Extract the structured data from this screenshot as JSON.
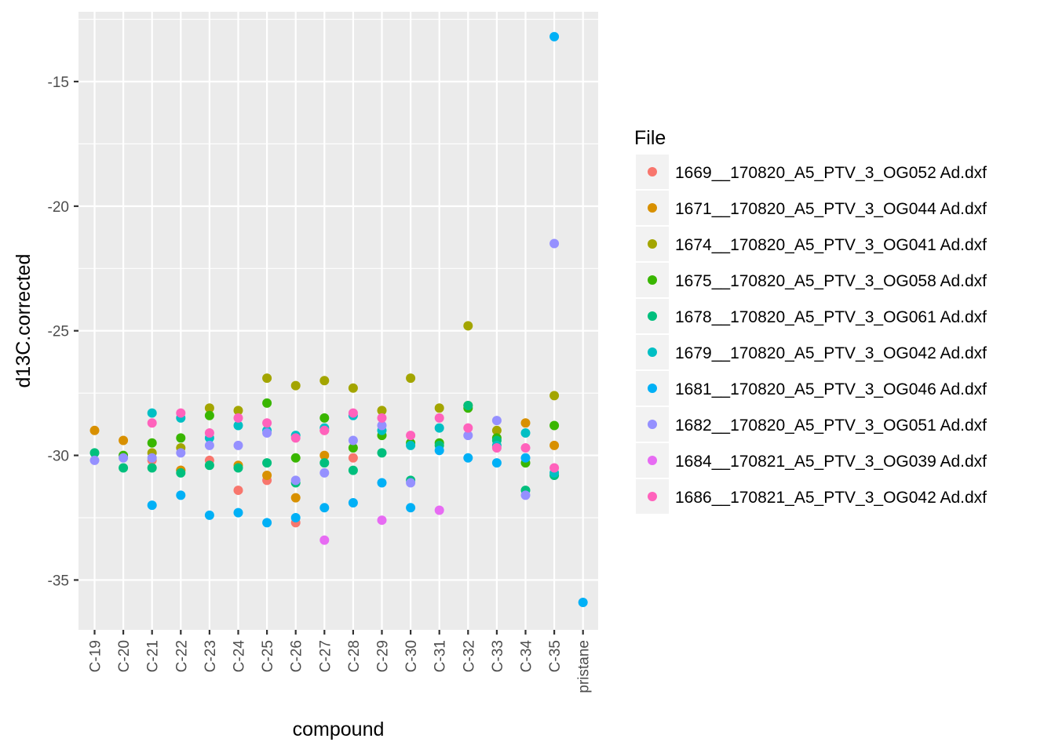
{
  "chart_data": {
    "type": "scatter",
    "xlabel": "compound",
    "ylabel": "d13C.corrected",
    "categories": [
      "C-19",
      "C-20",
      "C-21",
      "C-22",
      "C-23",
      "C-24",
      "C-25",
      "C-26",
      "C-27",
      "C-28",
      "C-29",
      "C-30",
      "C-31",
      "C-32",
      "C-33",
      "C-34",
      "C-35",
      "pristane"
    ],
    "y_ticks": [
      -35,
      -30,
      -25,
      -20,
      -15
    ],
    "ylim": [
      -37.0,
      -12.2
    ],
    "grid": true,
    "legend": {
      "title": "File",
      "placement": "right"
    },
    "series": [
      {
        "name": "1669__170820_A5_PTV_3_OG052 Ad.dxf",
        "color": "#F8766D",
        "points": [
          [
            "C-21",
            -30.2
          ],
          [
            "C-22",
            -30.6
          ],
          [
            "C-23",
            -30.2
          ],
          [
            "C-24",
            -31.4
          ],
          [
            "C-25",
            -31.0
          ],
          [
            "C-26",
            -32.7
          ],
          [
            "C-27",
            -29.0
          ],
          [
            "C-28",
            -30.1
          ]
        ]
      },
      {
        "name": "1671__170820_A5_PTV_3_OG044 Ad.dxf",
        "color": "#D89000",
        "points": [
          [
            "C-19",
            -29.0
          ],
          [
            "C-20",
            -29.4
          ],
          [
            "C-22",
            -30.6
          ],
          [
            "C-24",
            -30.4
          ],
          [
            "C-25",
            -30.8
          ],
          [
            "C-26",
            -31.7
          ],
          [
            "C-27",
            -30.0
          ],
          [
            "C-32",
            -28.0
          ],
          [
            "C-34",
            -28.7
          ],
          [
            "C-35",
            -29.6
          ]
        ]
      },
      {
        "name": "1674__170820_A5_PTV_3_OG041 Ad.dxf",
        "color": "#A3A500",
        "points": [
          [
            "C-21",
            -29.9
          ],
          [
            "C-22",
            -29.7
          ],
          [
            "C-23",
            -28.1
          ],
          [
            "C-24",
            -28.2
          ],
          [
            "C-25",
            -26.9
          ],
          [
            "C-26",
            -27.2
          ],
          [
            "C-27",
            -27.0
          ],
          [
            "C-28",
            -27.3
          ],
          [
            "C-29",
            -28.2
          ],
          [
            "C-30",
            -26.9
          ],
          [
            "C-31",
            -28.1
          ],
          [
            "C-32",
            -24.8
          ],
          [
            "C-33",
            -29.0
          ],
          [
            "C-35",
            -27.6
          ]
        ]
      },
      {
        "name": "1675__170820_A5_PTV_3_OG058 Ad.dxf",
        "color": "#39B600",
        "points": [
          [
            "C-20",
            -30.0
          ],
          [
            "C-21",
            -29.5
          ],
          [
            "C-22",
            -29.3
          ],
          [
            "C-23",
            -28.4
          ],
          [
            "C-25",
            -27.9
          ],
          [
            "C-26",
            -30.1
          ],
          [
            "C-27",
            -28.5
          ],
          [
            "C-28",
            -29.7
          ],
          [
            "C-29",
            -29.2
          ],
          [
            "C-30",
            -29.5
          ],
          [
            "C-31",
            -29.5
          ],
          [
            "C-32",
            -28.1
          ],
          [
            "C-33",
            -29.3
          ],
          [
            "C-34",
            -30.3
          ],
          [
            "C-35",
            -28.8
          ]
        ]
      },
      {
        "name": "1678__170820_A5_PTV_3_OG061 Ad.dxf",
        "color": "#00BF7D",
        "points": [
          [
            "C-19",
            -29.9
          ],
          [
            "C-20",
            -30.5
          ],
          [
            "C-21",
            -30.5
          ],
          [
            "C-22",
            -30.7
          ],
          [
            "C-23",
            -30.4
          ],
          [
            "C-24",
            -30.5
          ],
          [
            "C-25",
            -30.3
          ],
          [
            "C-26",
            -31.1
          ],
          [
            "C-27",
            -30.3
          ],
          [
            "C-28",
            -30.6
          ],
          [
            "C-29",
            -29.9
          ],
          [
            "C-30",
            -31.0
          ],
          [
            "C-31",
            -29.6
          ],
          [
            "C-32",
            -28.0
          ],
          [
            "C-33",
            -29.4
          ],
          [
            "C-34",
            -31.4
          ],
          [
            "C-35",
            -30.8
          ]
        ]
      },
      {
        "name": "1679__170820_A5_PTV_3_OG042 Ad.dxf",
        "color": "#00BFC4",
        "points": [
          [
            "C-21",
            -28.3
          ],
          [
            "C-22",
            -28.5
          ],
          [
            "C-23",
            -29.3
          ],
          [
            "C-24",
            -28.8
          ],
          [
            "C-25",
            -29.0
          ],
          [
            "C-26",
            -29.2
          ],
          [
            "C-27",
            -28.9
          ],
          [
            "C-28",
            -28.4
          ],
          [
            "C-29",
            -29.0
          ],
          [
            "C-30",
            -29.6
          ],
          [
            "C-31",
            -28.9
          ],
          [
            "C-33",
            -29.6
          ],
          [
            "C-34",
            -29.1
          ],
          [
            "C-35",
            -30.7
          ]
        ]
      },
      {
        "name": "1681__170820_A5_PTV_3_OG046 Ad.dxf",
        "color": "#00B0F6",
        "points": [
          [
            "C-21",
            -32.0
          ],
          [
            "C-22",
            -31.6
          ],
          [
            "C-23",
            -32.4
          ],
          [
            "C-24",
            -32.3
          ],
          [
            "C-25",
            -32.7
          ],
          [
            "C-26",
            -32.5
          ],
          [
            "C-27",
            -32.1
          ],
          [
            "C-28",
            -31.9
          ],
          [
            "C-29",
            -31.1
          ],
          [
            "C-30",
            -32.1
          ],
          [
            "C-31",
            -29.8
          ],
          [
            "C-32",
            -30.1
          ],
          [
            "C-33",
            -30.3
          ],
          [
            "C-34",
            -30.1
          ],
          [
            "C-35",
            -13.2
          ],
          [
            "pristane",
            -35.9
          ]
        ]
      },
      {
        "name": "1682__170820_A5_PTV_3_OG051 Ad.dxf",
        "color": "#9590FF",
        "points": [
          [
            "C-19",
            -30.2
          ],
          [
            "C-20",
            -30.1
          ],
          [
            "C-21",
            -30.1
          ],
          [
            "C-22",
            -29.9
          ],
          [
            "C-23",
            -29.6
          ],
          [
            "C-24",
            -29.6
          ],
          [
            "C-25",
            -29.1
          ],
          [
            "C-26",
            -31.0
          ],
          [
            "C-27",
            -30.7
          ],
          [
            "C-28",
            -29.4
          ],
          [
            "C-29",
            -28.8
          ],
          [
            "C-30",
            -31.1
          ],
          [
            "C-32",
            -29.2
          ],
          [
            "C-33",
            -28.6
          ],
          [
            "C-34",
            -31.6
          ],
          [
            "C-35",
            -21.5
          ]
        ]
      },
      {
        "name": "1684__170821_A5_PTV_3_OG039 Ad.dxf",
        "color": "#E76BF3",
        "points": [
          [
            "C-27",
            -33.4
          ],
          [
            "C-29",
            -32.6
          ],
          [
            "C-31",
            -32.2
          ]
        ]
      },
      {
        "name": "1686__170821_A5_PTV_3_OG042 Ad.dxf",
        "color": "#FF62BC",
        "points": [
          [
            "C-21",
            -28.7
          ],
          [
            "C-22",
            -28.3
          ],
          [
            "C-23",
            -29.1
          ],
          [
            "C-24",
            -28.5
          ],
          [
            "C-25",
            -28.7
          ],
          [
            "C-26",
            -29.3
          ],
          [
            "C-27",
            -29.0
          ],
          [
            "C-28",
            -28.3
          ],
          [
            "C-29",
            -28.5
          ],
          [
            "C-30",
            -29.2
          ],
          [
            "C-31",
            -28.5
          ],
          [
            "C-32",
            -28.9
          ],
          [
            "C-33",
            -29.7
          ],
          [
            "C-34",
            -29.7
          ],
          [
            "C-35",
            -30.5
          ]
        ]
      }
    ]
  }
}
